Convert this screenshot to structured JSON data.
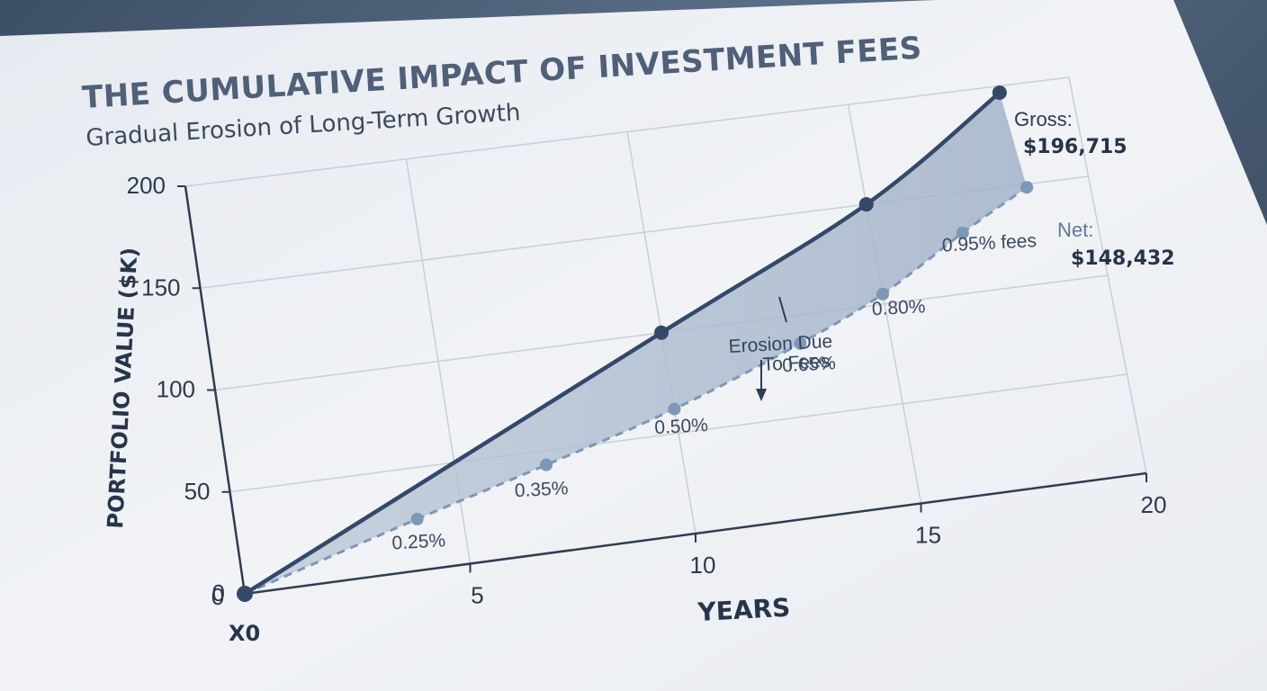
{
  "chart_data": {
    "type": "line",
    "title": "THE CUMULATIVE IMPACT OF INVESTMENT FEES",
    "subtitle": "Gradual Erosion of Long-Term Growth",
    "xlabel": "YEARS",
    "ylabel": "PORTFOLIO VALUE ($K)",
    "xlim": [
      0,
      20
    ],
    "ylim": [
      0,
      200
    ],
    "x_ticks": [
      "0",
      "5",
      "10",
      "15",
      "20"
    ],
    "y_ticks": [
      "0",
      "50",
      "100",
      "150",
      "200"
    ],
    "origin_label": "X0",
    "grid": true,
    "series": [
      {
        "name": "Gross",
        "style": "solid",
        "color": "#34486a",
        "points": [
          [
            0,
            0
          ],
          [
            10,
            100
          ],
          [
            15,
            150
          ],
          [
            18.4,
            196.7
          ]
        ]
      },
      {
        "name": "Net",
        "style": "dashed",
        "color": "#7d97b6",
        "points": [
          [
            0,
            0
          ],
          [
            4,
            25
          ],
          [
            7,
            43
          ],
          [
            10,
            62
          ],
          [
            13,
            86
          ],
          [
            15,
            105
          ],
          [
            17,
            130
          ],
          [
            18.6,
            148.4
          ]
        ],
        "point_labels": [
          "",
          "0.25%",
          "0.35%",
          "0.50%",
          "0.65%",
          "0.80%",
          "0.95% fees",
          ""
        ]
      }
    ],
    "annotations": {
      "gross_label": "Gross:",
      "gross_value": "$196,715",
      "net_label": "Net:",
      "net_value": "$148,432",
      "erosion_line1": "Erosion Due",
      "erosion_line2": "To Fees"
    },
    "colors": {
      "fill": "#a9b9cc",
      "grid": "#c7cfd9",
      "axis": "#2e3d52",
      "paper": "#eef1f5"
    }
  }
}
